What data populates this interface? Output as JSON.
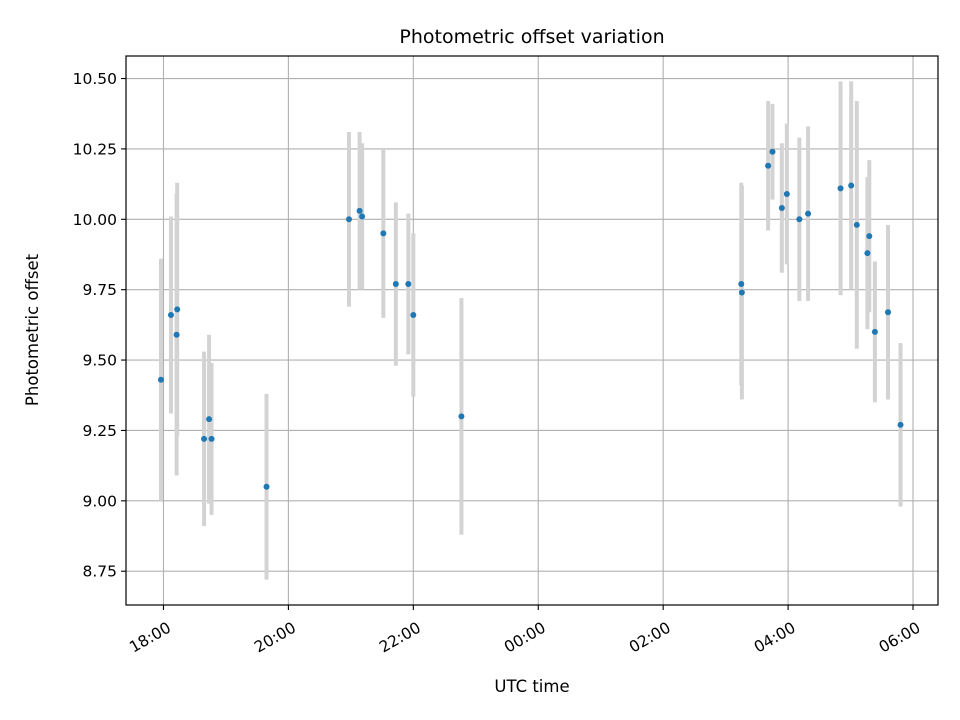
{
  "chart_data": {
    "type": "scatter",
    "title": "Photometric offset variation",
    "xlabel": "UTC time",
    "ylabel": "Photometric offset",
    "grid": true,
    "x_unit": "hours since 18:00 UTC",
    "xlim": [
      -0.6,
      12.4
    ],
    "ylim": [
      8.63,
      10.58
    ],
    "x_ticks": [
      {
        "value": 0,
        "label": "18:00"
      },
      {
        "value": 2,
        "label": "20:00"
      },
      {
        "value": 4,
        "label": "22:00"
      },
      {
        "value": 6,
        "label": "00:00"
      },
      {
        "value": 8,
        "label": "02:00"
      },
      {
        "value": 10,
        "label": "04:00"
      },
      {
        "value": 12,
        "label": "06:00"
      }
    ],
    "y_ticks": [
      {
        "value": 8.75,
        "label": "8.75"
      },
      {
        "value": 9.0,
        "label": "9.00"
      },
      {
        "value": 9.25,
        "label": "9.25"
      },
      {
        "value": 9.5,
        "label": "9.50"
      },
      {
        "value": 9.75,
        "label": "9.75"
      },
      {
        "value": 10.0,
        "label": "10.00"
      },
      {
        "value": 10.25,
        "label": "10.25"
      },
      {
        "value": 10.5,
        "label": "10.50"
      }
    ],
    "point_color": "#1f77b4",
    "errorbar_color": "#d3d3d3",
    "points": [
      {
        "x": -0.04,
        "y": 9.43,
        "err": 0.43
      },
      {
        "x": 0.12,
        "y": 9.66,
        "err": 0.35
      },
      {
        "x": 0.21,
        "y": 9.59,
        "err": 0.5
      },
      {
        "x": 0.22,
        "y": 9.68,
        "err": 0.45
      },
      {
        "x": 0.65,
        "y": 9.22,
        "err": 0.31
      },
      {
        "x": 0.73,
        "y": 9.29,
        "err": 0.3
      },
      {
        "x": 0.77,
        "y": 9.22,
        "err": 0.27
      },
      {
        "x": 1.65,
        "y": 9.05,
        "err": 0.33
      },
      {
        "x": 2.97,
        "y": 10.0,
        "err": 0.31
      },
      {
        "x": 3.14,
        "y": 10.03,
        "err": 0.28
      },
      {
        "x": 3.18,
        "y": 10.01,
        "err": 0.26
      },
      {
        "x": 3.52,
        "y": 9.95,
        "err": 0.3
      },
      {
        "x": 3.72,
        "y": 9.77,
        "err": 0.29
      },
      {
        "x": 3.92,
        "y": 9.77,
        "err": 0.25
      },
      {
        "x": 4.0,
        "y": 9.66,
        "err": 0.29
      },
      {
        "x": 4.77,
        "y": 9.3,
        "err": 0.42
      },
      {
        "x": 9.25,
        "y": 9.77,
        "err": 0.36
      },
      {
        "x": 9.26,
        "y": 9.74,
        "err": 0.38
      },
      {
        "x": 9.68,
        "y": 10.19,
        "err": 0.23
      },
      {
        "x": 9.75,
        "y": 10.24,
        "err": 0.17
      },
      {
        "x": 9.9,
        "y": 10.04,
        "err": 0.23
      },
      {
        "x": 9.98,
        "y": 10.09,
        "err": 0.25
      },
      {
        "x": 10.18,
        "y": 10.0,
        "err": 0.29
      },
      {
        "x": 10.32,
        "y": 10.02,
        "err": 0.31
      },
      {
        "x": 10.84,
        "y": 10.11,
        "err": 0.38
      },
      {
        "x": 11.01,
        "y": 10.12,
        "err": 0.37
      },
      {
        "x": 11.1,
        "y": 9.98,
        "err": 0.44
      },
      {
        "x": 11.27,
        "y": 9.88,
        "err": 0.27
      },
      {
        "x": 11.3,
        "y": 9.94,
        "err": 0.27
      },
      {
        "x": 11.39,
        "y": 9.6,
        "err": 0.25
      },
      {
        "x": 11.6,
        "y": 9.67,
        "err": 0.31
      },
      {
        "x": 11.8,
        "y": 9.27,
        "err": 0.29
      }
    ]
  }
}
